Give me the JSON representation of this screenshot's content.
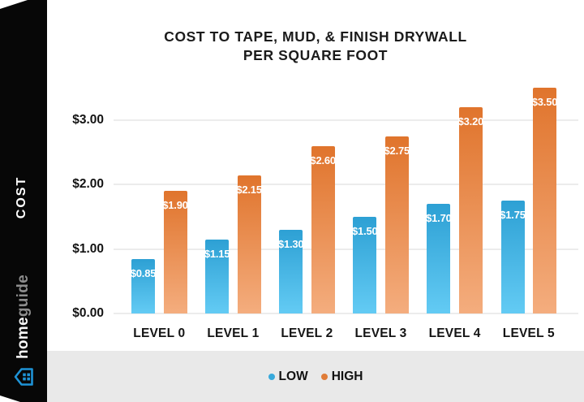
{
  "title": {
    "line1": "COST TO TAPE, MUD, & FINISH DRYWALL",
    "line2": "PER SQUARE FOOT"
  },
  "sidebar": {
    "axis_label": "COST",
    "brand_bold": "home",
    "brand_light": "guide",
    "logo_icon": "house-icon",
    "logo_color": "#1e93d6"
  },
  "legend": {
    "items": [
      {
        "label": "LOW",
        "color": "#38a9db"
      },
      {
        "label": "HIGH",
        "color": "#e07c38"
      }
    ]
  },
  "chart_data": {
    "type": "bar",
    "title": "COST TO TAPE, MUD, & FINISH DRYWALL PER SQUARE FOOT",
    "categories": [
      "LEVEL 0",
      "LEVEL 1",
      "LEVEL 2",
      "LEVEL 3",
      "LEVEL 4",
      "LEVEL 5"
    ],
    "series": [
      {
        "name": "LOW",
        "values": [
          0.85,
          1.15,
          1.3,
          1.5,
          1.7,
          1.75
        ],
        "labels": [
          "$0.85",
          "$1.15",
          "$1.30",
          "$1.50",
          "$1.70",
          "$1.75"
        ],
        "color_top": "#2da0d4",
        "color_bottom": "#63cbf4"
      },
      {
        "name": "HIGH",
        "values": [
          1.9,
          2.15,
          2.6,
          2.75,
          3.2,
          3.5
        ],
        "labels": [
          "$1.90",
          "$2.15",
          "$2.60",
          "$2.75",
          "$3.20",
          "$3.50"
        ],
        "color_top": "#e0742c",
        "color_bottom": "#f4ad7e"
      }
    ],
    "y_ticks": [
      {
        "label": "$0.00",
        "value": 0
      },
      {
        "label": "$1.00",
        "value": 1
      },
      {
        "label": "$2.00",
        "value": 2
      },
      {
        "label": "$3.00",
        "value": 3
      }
    ],
    "ylim": [
      0,
      3.6
    ],
    "ylabel": "COST",
    "grid": true,
    "legend_position": "bottom"
  }
}
